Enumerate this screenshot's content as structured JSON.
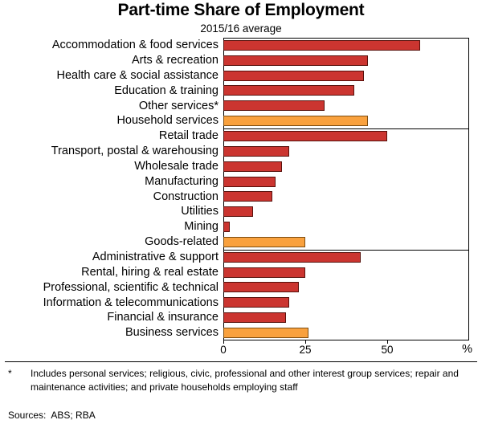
{
  "chart_data": {
    "type": "bar",
    "orientation": "horizontal",
    "title": "Part-time Share of Employment",
    "subtitle": "2015/16 average",
    "xlabel": "",
    "ylabel": "",
    "xlim": [
      0,
      75
    ],
    "xticks": [
      0,
      25,
      50
    ],
    "x_unit": "%",
    "grid": false,
    "legend_position": "none",
    "colors": {
      "detail": "#cb3530",
      "detail_border": "#57100b",
      "summary": "#f9a13e",
      "summary_border": "#7c4c10"
    },
    "groups": [
      {
        "rows": [
          {
            "label": "Accommodation & food services",
            "value": 60,
            "type": "detail"
          },
          {
            "label": "Arts & recreation",
            "value": 44,
            "type": "detail"
          },
          {
            "label": "Health care & social assistance",
            "value": 43,
            "type": "detail"
          },
          {
            "label": "Education & training",
            "value": 40,
            "type": "detail"
          },
          {
            "label": "Other services*",
            "value": 31,
            "type": "detail"
          },
          {
            "label": "Household services",
            "value": 44,
            "type": "summary"
          }
        ]
      },
      {
        "rows": [
          {
            "label": "Retail trade",
            "value": 50,
            "type": "detail"
          },
          {
            "label": "Transport, postal & warehousing",
            "value": 20,
            "type": "detail"
          },
          {
            "label": "Wholesale trade",
            "value": 18,
            "type": "detail"
          },
          {
            "label": "Manufacturing",
            "value": 16,
            "type": "detail"
          },
          {
            "label": "Construction",
            "value": 15,
            "type": "detail"
          },
          {
            "label": "Utilities",
            "value": 9,
            "type": "detail"
          },
          {
            "label": "Mining",
            "value": 2,
            "type": "detail"
          },
          {
            "label": "Goods-related",
            "value": 25,
            "type": "summary"
          }
        ]
      },
      {
        "rows": [
          {
            "label": "Administrative & support",
            "value": 42,
            "type": "detail"
          },
          {
            "label": "Rental, hiring & real estate",
            "value": 25,
            "type": "detail"
          },
          {
            "label": "Professional, scientific & technical",
            "value": 23,
            "type": "detail"
          },
          {
            "label": "Information & telecommunications",
            "value": 20,
            "type": "detail"
          },
          {
            "label": "Financial & insurance",
            "value": 19,
            "type": "detail"
          },
          {
            "label": "Business services",
            "value": 26,
            "type": "summary"
          }
        ]
      }
    ]
  },
  "footnote": {
    "marker": "*",
    "text": "Includes personal services; religious, civic, professional and other interest group services; repair and maintenance activities; and private households employing staff"
  },
  "sources": "Sources:  ABS; RBA"
}
